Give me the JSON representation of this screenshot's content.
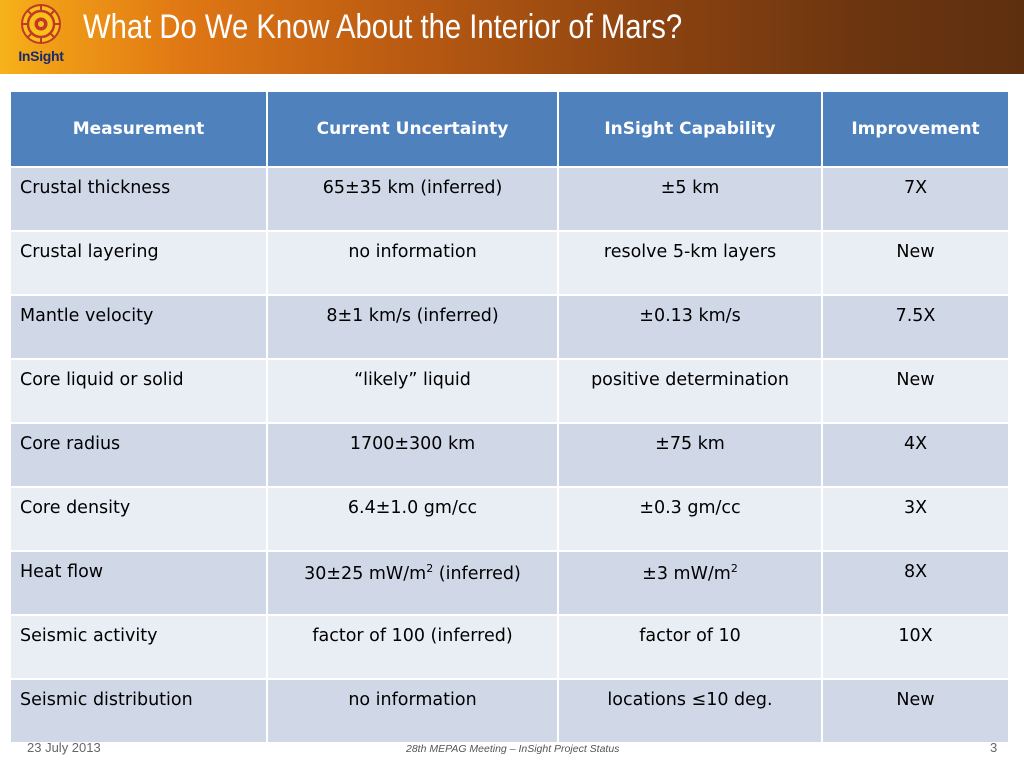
{
  "header": {
    "title": "What Do We Know About the Interior of Mars?",
    "logo_text": "InSight"
  },
  "colors": {
    "header_fill": "#4f81bd",
    "row_odd": "#d0d8e8",
    "row_even": "#e9edf4",
    "banner_light": "#f6b21a",
    "banner_dark": "#5e2f0f"
  },
  "table": {
    "headers": [
      "Measurement",
      "Current Uncertainty",
      "InSight Capability",
      "Improvement"
    ],
    "rows": [
      [
        {
          "text": "Crustal thickness"
        },
        {
          "text": "65±35 km (inferred)"
        },
        {
          "text": "±5 km"
        },
        {
          "text": "7X"
        }
      ],
      [
        {
          "text": "Crustal layering"
        },
        {
          "text": "no information"
        },
        {
          "text": "resolve 5-km layers"
        },
        {
          "text": "New"
        }
      ],
      [
        {
          "text": "Mantle velocity"
        },
        {
          "text": "8±1 km/s (inferred)"
        },
        {
          "text": "±0.13 km/s"
        },
        {
          "text": "7.5X"
        }
      ],
      [
        {
          "text": "Core liquid or solid"
        },
        {
          "text": "“likely” liquid"
        },
        {
          "text": "positive determination"
        },
        {
          "text": "New"
        }
      ],
      [
        {
          "text": "Core radius"
        },
        {
          "text": "1700±300 km"
        },
        {
          "text": "±75 km"
        },
        {
          "text": "4X"
        }
      ],
      [
        {
          "text": "Core density"
        },
        {
          "text": "6.4±1.0 gm/cc"
        },
        {
          "text": "±0.3 gm/cc"
        },
        {
          "text": "3X"
        }
      ],
      [
        {
          "text": "Heat flow"
        },
        {
          "text": "30±25 mW/m",
          "sup": "2",
          "after": " (inferred)"
        },
        {
          "text": "±3 mW/m",
          "sup": "2"
        },
        {
          "text": "8X"
        }
      ],
      [
        {
          "text": "Seismic activity"
        },
        {
          "text": "factor of 100 (inferred)"
        },
        {
          "text": "factor of 10"
        },
        {
          "text": "10X"
        }
      ],
      [
        {
          "text": "Seismic distribution"
        },
        {
          "text": "no information"
        },
        {
          "text": "locations ≤10 deg."
        },
        {
          "text": "New"
        }
      ]
    ]
  },
  "footer": {
    "date": "23 July 2013",
    "center": "28th MEPAG Meeting – InSight Project Status",
    "page": "3"
  }
}
